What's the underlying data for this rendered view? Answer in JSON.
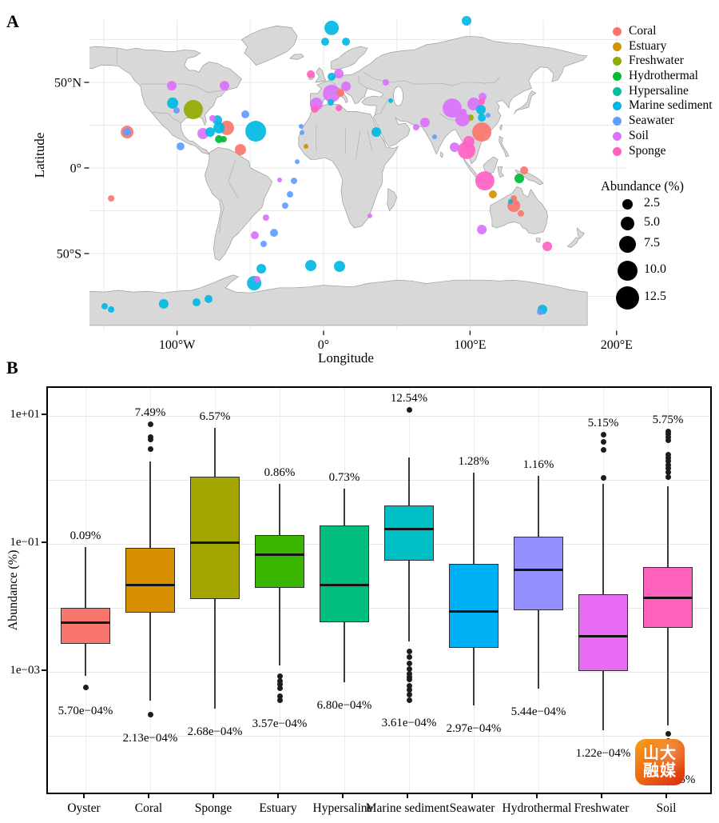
{
  "figure": {
    "panel_a_label": "A",
    "panel_b_label": "B"
  },
  "watermark": {
    "line1": "山大",
    "line2": "融媒"
  },
  "chart_data": [
    {
      "type": "scatter",
      "subtype": "bubble-world-map",
      "xlabel": "Longitude",
      "ylabel": "Latitude",
      "xticks": [
        {
          "label": "100°W",
          "lon": -100
        },
        {
          "label": "0°",
          "lon": 0
        },
        {
          "label": "100°E",
          "lon": 100
        },
        {
          "label": "200°E",
          "lon": 200
        }
      ],
      "yticks": [
        {
          "label": "50°N",
          "lat": 50
        },
        {
          "label": "0°",
          "lat": 0
        },
        {
          "label": "50°S",
          "lat": -50
        }
      ],
      "legend": {
        "categories": [
          {
            "name": "Coral",
            "color": "#F8766D"
          },
          {
            "name": "Estuary",
            "color": "#D39200"
          },
          {
            "name": "Freshwater",
            "color": "#93AA00"
          },
          {
            "name": "Hydrothermal",
            "color": "#00BA38"
          },
          {
            "name": "Hypersaline",
            "color": "#00C19F"
          },
          {
            "name": "Marine sediment",
            "color": "#00B9E3"
          },
          {
            "name": "Seawater",
            "color": "#619CFF"
          },
          {
            "name": "Soil",
            "color": "#DB72FB"
          },
          {
            "name": "Sponge",
            "color": "#FF61C3"
          }
        ],
        "size_title": "Abundance (%)",
        "sizes": [
          {
            "label": "2.5",
            "r": 6.5
          },
          {
            "label": "5.0",
            "r": 8.5
          },
          {
            "label": "7.5",
            "r": 10.5
          },
          {
            "label": "10.0",
            "r": 12.5
          },
          {
            "label": "12.5",
            "r": 14.5
          }
        ]
      },
      "points_format": [
        "lon",
        "lat",
        "radius_px",
        "category_index"
      ],
      "points": [
        [
          5.5,
          81.8,
          9,
          5
        ],
        [
          1.1,
          73.8,
          5,
          5
        ],
        [
          15.3,
          73.8,
          5,
          5
        ],
        [
          97.6,
          86,
          6,
          5
        ],
        [
          -8.7,
          54.7,
          5,
          8
        ],
        [
          10.4,
          55.1,
          6,
          7
        ],
        [
          5.5,
          53.3,
          5,
          5
        ],
        [
          5.5,
          43.5,
          11,
          7
        ],
        [
          11.5,
          43.9,
          5,
          0
        ],
        [
          15.3,
          47.7,
          6,
          7
        ],
        [
          -4.9,
          37.4,
          8,
          7
        ],
        [
          -6,
          34.6,
          5,
          8
        ],
        [
          4.9,
          38.3,
          4,
          5
        ],
        [
          10.4,
          35,
          4,
          8
        ],
        [
          -103.6,
          48.1,
          6,
          7
        ],
        [
          -67.6,
          48.1,
          6,
          7
        ],
        [
          -103,
          37.9,
          7,
          5
        ],
        [
          -100.3,
          33.6,
          4,
          6
        ],
        [
          -88.9,
          34.1,
          12,
          2
        ],
        [
          -134.1,
          21,
          8,
          0
        ],
        [
          -134.1,
          21,
          5,
          6
        ],
        [
          -82.3,
          20.1,
          7,
          7
        ],
        [
          -77.4,
          21,
          6,
          5
        ],
        [
          -72.5,
          28,
          6,
          5
        ],
        [
          -75.8,
          29,
          4,
          7
        ],
        [
          -66,
          23.4,
          9,
          0
        ],
        [
          -71.4,
          23.4,
          7,
          5
        ],
        [
          -71.4,
          16.8,
          5,
          3
        ],
        [
          -68.2,
          16.8,
          4,
          3
        ],
        [
          -53.4,
          31.3,
          5,
          6
        ],
        [
          -46.3,
          21.5,
          13,
          5
        ],
        [
          -56.7,
          10.7,
          7,
          0
        ],
        [
          -97.6,
          12.6,
          5,
          6
        ],
        [
          -18,
          3.7,
          3,
          6
        ],
        [
          -14.7,
          20.6,
          3,
          6
        ],
        [
          -15.3,
          24.3,
          3,
          6
        ],
        [
          -12,
          12.6,
          3,
          1
        ],
        [
          -145,
          -17.8,
          4,
          0
        ],
        [
          36,
          21,
          6,
          5
        ],
        [
          31.6,
          -28,
          3,
          7
        ],
        [
          42.5,
          50,
          4,
          7
        ],
        [
          45.8,
          39.3,
          3,
          5
        ],
        [
          87.8,
          35,
          12,
          7
        ],
        [
          102.5,
          37.4,
          8,
          7
        ],
        [
          108.5,
          41.6,
          5,
          7
        ],
        [
          95.4,
          32.7,
          4,
          7
        ],
        [
          100.3,
          29.4,
          4,
          2
        ],
        [
          94.9,
          28.5,
          9,
          7
        ],
        [
          107.4,
          34.1,
          6,
          5
        ],
        [
          108,
          29.4,
          5,
          5
        ],
        [
          108,
          38.8,
          4,
          8
        ],
        [
          112.3,
          30.8,
          3,
          6
        ],
        [
          108,
          21,
          12,
          0
        ],
        [
          97.6,
          10.3,
          11,
          8
        ],
        [
          99.2,
          15.4,
          7,
          8
        ],
        [
          89.4,
          12.1,
          6,
          7
        ],
        [
          69.2,
          26.6,
          6,
          7
        ],
        [
          63.2,
          23.8,
          4,
          7
        ],
        [
          75.8,
          18.2,
          3,
          6
        ],
        [
          110.1,
          -7.5,
          12,
          8
        ],
        [
          136.9,
          -1.4,
          5,
          0
        ],
        [
          133.6,
          -6.1,
          6,
          3
        ],
        [
          115.6,
          -15.4,
          5,
          1
        ],
        [
          129.8,
          -17.8,
          4,
          0
        ],
        [
          129.8,
          -22,
          8,
          0
        ],
        [
          127.6,
          -19.6,
          3,
          5
        ],
        [
          134.7,
          -26.6,
          4,
          0
        ],
        [
          108,
          -36,
          6,
          7
        ],
        [
          152.7,
          -45.8,
          6,
          8
        ],
        [
          -30,
          -7,
          3,
          7
        ],
        [
          -20.2,
          -7.5,
          4,
          6
        ],
        [
          -22.9,
          -15.4,
          4,
          6
        ],
        [
          -26.2,
          -22,
          4,
          6
        ],
        [
          -39.3,
          -29,
          4,
          7
        ],
        [
          -46.9,
          -39.3,
          5,
          7
        ],
        [
          -33.8,
          -37.9,
          5,
          6
        ],
        [
          -40.9,
          -44.4,
          4,
          6
        ],
        [
          -42.5,
          -58.9,
          6,
          5
        ],
        [
          -8.7,
          -57,
          7,
          5
        ],
        [
          10.9,
          -57.5,
          7,
          5
        ],
        [
          -47.4,
          -67.3,
          9,
          5
        ],
        [
          -45.3,
          -65,
          4,
          7
        ],
        [
          -109.1,
          -79.4,
          6,
          5
        ],
        [
          -86.7,
          -78.5,
          5,
          5
        ],
        [
          -78.5,
          -76.6,
          5,
          5
        ],
        [
          -149.4,
          -80.8,
          4,
          5
        ],
        [
          -145,
          -82.7,
          4,
          5
        ],
        [
          149.4,
          -82.7,
          6,
          5
        ],
        [
          147.8,
          -84.1,
          4,
          6
        ]
      ]
    },
    {
      "type": "box",
      "ylabel": "Abundance (%)",
      "yscale": "log10",
      "ylim": [
        3e-05,
        30
      ],
      "yticks": [
        {
          "label": "1e+01",
          "value": 10
        },
        {
          "label": "1e−01",
          "value": 0.1
        },
        {
          "label": "1e−03",
          "value": 0.001
        }
      ],
      "gridline_values": [
        10,
        1,
        0.1,
        0.01,
        0.001,
        0.0001
      ],
      "categories": [
        {
          "name": "Oyster",
          "color": "#F8766D",
          "max_label": "0.09%",
          "min_label": "5.70e−04%",
          "whisker_high": 0.09,
          "q3": 0.01,
          "median": 0.0058,
          "q1": 0.0027,
          "whisker_low": 0.00087,
          "outliers_above": [],
          "outliers_below": [
            0.00057
          ]
        },
        {
          "name": "Coral",
          "color": "#D89000",
          "max_label": "7.49%",
          "min_label": "2.13e−04%",
          "whisker_high": 1.94,
          "q3": 0.087,
          "median": 0.023,
          "q1": 0.0084,
          "whisker_low": 0.00035,
          "outliers_above": [
            7.49,
            4.7,
            4.3,
            3.05
          ],
          "outliers_below": [
            0.000213
          ]
        },
        {
          "name": "Sponge",
          "color": "#A3A500",
          "max_label": "6.57%",
          "min_label": "2.68e−04%",
          "whisker_high": 6.57,
          "q3": 1.12,
          "median": 0.105,
          "q1": 0.0137,
          "whisker_low": 0.000268,
          "outliers_above": [],
          "outliers_below": []
        },
        {
          "name": "Estuary",
          "color": "#39B600",
          "max_label": "0.86%",
          "min_label": "3.57e−04%",
          "whisker_high": 0.86,
          "q3": 0.137,
          "median": 0.067,
          "q1": 0.0205,
          "whisker_low": 0.00126,
          "outliers_above": [],
          "outliers_below": [
            0.00085,
            0.00072,
            0.00064,
            0.00056,
            0.00042,
            0.000357
          ]
        },
        {
          "name": "Hypersaline",
          "color": "#00BF7D",
          "max_label": "0.73%",
          "min_label": "6.80e−04%",
          "whisker_high": 0.73,
          "q3": 0.194,
          "median": 0.023,
          "q1": 0.006,
          "whisker_low": 0.00068,
          "outliers_above": [],
          "outliers_below": []
        },
        {
          "name": "Marine sediment",
          "color": "#00BFC4",
          "max_label": "12.54%",
          "min_label": "3.61e−04%",
          "whisker_high": 2.24,
          "q3": 0.398,
          "median": 0.168,
          "q1": 0.0546,
          "whisker_low": 0.003,
          "outliers_above": [
            12.54
          ],
          "outliers_below": [
            0.0021,
            0.0017,
            0.00135,
            0.0011,
            0.00092,
            0.00083,
            0.00075,
            0.00061,
            0.00053,
            0.00044,
            0.000361
          ]
        },
        {
          "name": "Seawater",
          "color": "#00B0F6",
          "max_label": "1.28%",
          "min_label": "2.97e−04%",
          "whisker_high": 1.28,
          "q3": 0.049,
          "median": 0.0089,
          "q1": 0.0024,
          "whisker_low": 0.000297,
          "outliers_above": [],
          "outliers_below": []
        },
        {
          "name": "Hydrothermal",
          "color": "#9590FF",
          "max_label": "1.16%",
          "min_label": "5.44e−04%",
          "whisker_high": 1.16,
          "q3": 0.13,
          "median": 0.0387,
          "q1": 0.0092,
          "whisker_low": 0.000544,
          "outliers_above": [],
          "outliers_below": []
        },
        {
          "name": "Freshwater",
          "color": "#E76BF3",
          "max_label": "5.15%",
          "min_label": "1.22e−04%",
          "whisker_high": 0.87,
          "q3": 0.0163,
          "median": 0.0036,
          "q1": 0.00103,
          "whisker_low": 0.000122,
          "outliers_above": [
            5.15,
            3.95,
            2.95,
            1.09
          ],
          "outliers_below": []
        },
        {
          "name": "Soil",
          "color": "#FF62BC",
          "max_label": "5.75%",
          "min_label": "4.74e−05%",
          "whisker_high": 0.8,
          "q3": 0.0434,
          "median": 0.0145,
          "q1": 0.0049,
          "whisker_low": 0.000145,
          "outliers_above": [
            5.75,
            5.2,
            4.65,
            4.2,
            2.5,
            2.2,
            1.95,
            1.7,
            1.5,
            1.3,
            1.12
          ],
          "outliers_below": [
            0.000106,
            8.2e-05,
            6.4e-05,
            4.74e-05
          ]
        }
      ]
    }
  ]
}
